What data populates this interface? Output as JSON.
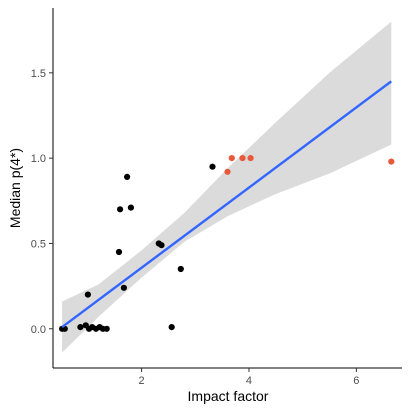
{
  "chart_data": {
    "type": "scatter",
    "title": "",
    "xlabel": "Impact factor",
    "ylabel": "Median p(4*)",
    "xlim": [
      0.35,
      6.85
    ],
    "ylim": [
      -0.23,
      1.88
    ],
    "x_ticks": [
      2,
      4,
      6
    ],
    "y_ticks": [
      0.0,
      0.5,
      1.0,
      1.5
    ],
    "x_tick_labels": [
      "2",
      "4",
      "6"
    ],
    "y_tick_labels": [
      "0.0",
      "0.5",
      "1.0",
      "1.5"
    ],
    "grid": false,
    "legend": "none",
    "series": [
      {
        "color": "#000000",
        "points": [
          {
            "x": 0.52,
            "y": 0.0
          },
          {
            "x": 0.57,
            "y": 0.0
          },
          {
            "x": 0.86,
            "y": 0.01
          },
          {
            "x": 0.96,
            "y": 0.02
          },
          {
            "x": 1.02,
            "y": 0.0
          },
          {
            "x": 1.08,
            "y": 0.01
          },
          {
            "x": 1.15,
            "y": 0.0
          },
          {
            "x": 1.22,
            "y": 0.01
          },
          {
            "x": 1.28,
            "y": 0.0
          },
          {
            "x": 1.35,
            "y": 0.0
          },
          {
            "x": 1.0,
            "y": 0.2
          },
          {
            "x": 1.58,
            "y": 0.45
          },
          {
            "x": 1.6,
            "y": 0.7
          },
          {
            "x": 1.67,
            "y": 0.24
          },
          {
            "x": 1.73,
            "y": 0.89
          },
          {
            "x": 1.8,
            "y": 0.71
          },
          {
            "x": 2.32,
            "y": 0.5
          },
          {
            "x": 2.37,
            "y": 0.49
          },
          {
            "x": 2.56,
            "y": 0.01
          },
          {
            "x": 2.73,
            "y": 0.35
          },
          {
            "x": 3.32,
            "y": 0.95
          }
        ]
      },
      {
        "color": "#e8583b",
        "points": [
          {
            "x": 3.6,
            "y": 0.92
          },
          {
            "x": 3.68,
            "y": 1.0
          },
          {
            "x": 3.88,
            "y": 1.0
          },
          {
            "x": 4.03,
            "y": 1.0
          },
          {
            "x": 6.65,
            "y": 0.98
          }
        ]
      }
    ],
    "fit": {
      "method": "linear",
      "color": "#3366ff",
      "band_color": "#d9d9d9",
      "line": [
        {
          "x": 0.52,
          "y": 0.01
        },
        {
          "x": 6.65,
          "y": 1.45
        }
      ],
      "band": [
        {
          "x": 0.52,
          "lower": -0.14,
          "upper": 0.16
        },
        {
          "x": 1.2,
          "lower": 0.07,
          "upper": 0.26
        },
        {
          "x": 2.0,
          "lower": 0.3,
          "upper": 0.46
        },
        {
          "x": 2.8,
          "lower": 0.51,
          "upper": 0.68
        },
        {
          "x": 3.6,
          "lower": 0.66,
          "upper": 0.94
        },
        {
          "x": 4.5,
          "lower": 0.79,
          "upper": 1.21
        },
        {
          "x": 5.5,
          "lower": 0.91,
          "upper": 1.5
        },
        {
          "x": 6.65,
          "lower": 1.08,
          "upper": 1.8
        }
      ]
    }
  }
}
